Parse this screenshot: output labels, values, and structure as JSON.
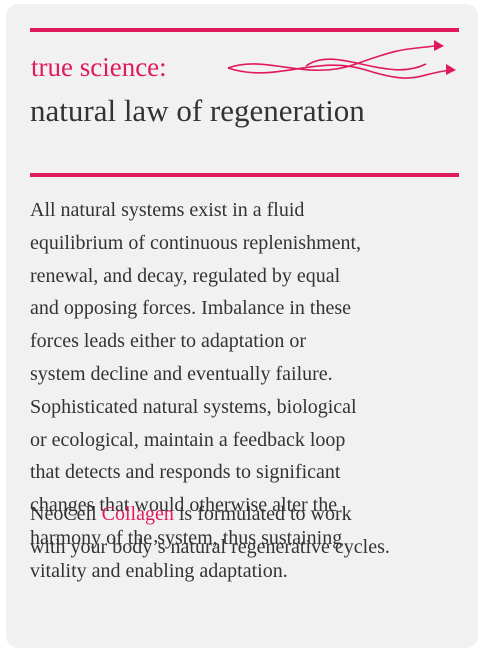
{
  "header": {
    "label": "true science:",
    "title": "natural law of regeneration"
  },
  "body": {
    "lines": [
      "All natural systems exist in a fluid",
      "equilibrium of continuous replenishment,",
      "renewal, and decay, regulated by equal",
      "and opposing forces. Imbalance in these",
      "forces leads either to adaptation or",
      "system decline and eventually failure.",
      "Sophisticated natural systems, biological",
      "or ecological, maintain a feedback loop",
      "that detects and responds to significant",
      "changes that would otherwise alter the",
      "harmony of the system, thus sustaining",
      "vitality and enabling adaptation."
    ]
  },
  "footer": {
    "prefix": "NeoCell",
    "brand": "Collagen",
    "rest": "is formulated to work",
    "line2": "with your body’s natural regenerative cycles."
  }
}
